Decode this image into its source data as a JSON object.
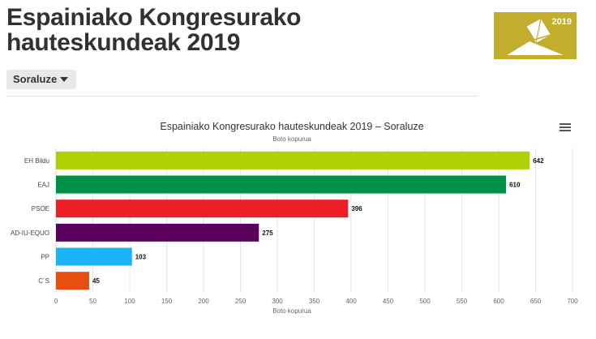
{
  "page": {
    "title": "Espainiako Kongresurako hauteskundeak 2019"
  },
  "logo": {
    "year": "2019"
  },
  "selector": {
    "selected": "Soraluze"
  },
  "chart_data": {
    "type": "bar",
    "orientation": "horizontal",
    "title": "Espainiako Kongresurako hauteskundeak 2019 – Soraluze",
    "subtitle": "Boto kopurua",
    "xlabel": "Boto kopurua",
    "ylabel": "",
    "categories": [
      "EH Bildu",
      "EAJ",
      "PSOE",
      "AD-IU-EQUO",
      "PP",
      "C´S"
    ],
    "values": [
      642,
      610,
      396,
      275,
      103,
      45
    ],
    "colors": [
      "#b0cf04",
      "#009149",
      "#ee1e26",
      "#59005e",
      "#1ab3f5",
      "#e84e0f"
    ],
    "xlim": [
      0,
      700
    ],
    "xticks": [
      0,
      50,
      100,
      150,
      200,
      250,
      300,
      350,
      400,
      450,
      500,
      550,
      600,
      650,
      700
    ],
    "grid": true,
    "legend": false,
    "data_labels": true
  }
}
